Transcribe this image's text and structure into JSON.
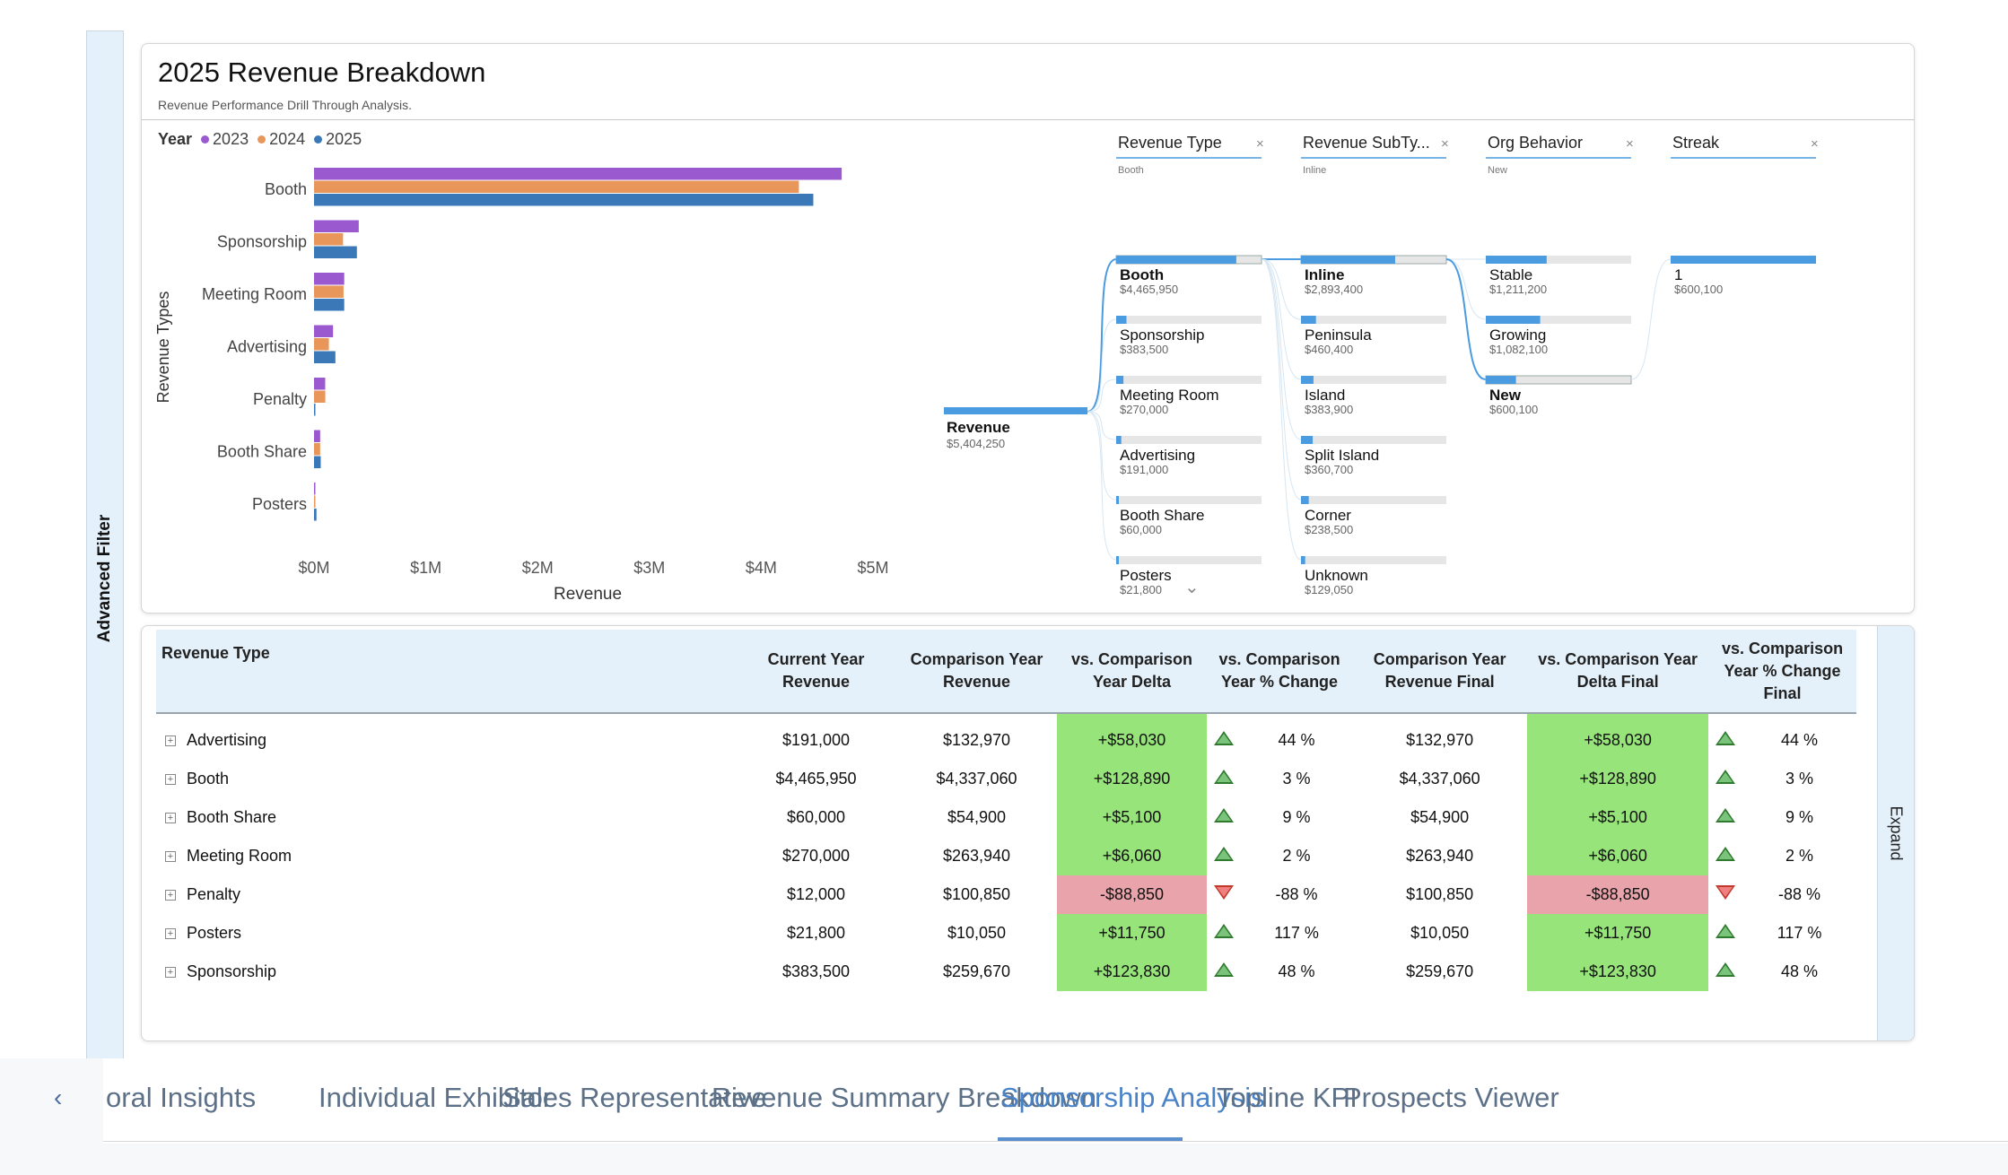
{
  "side_panel": {
    "advanced_filter_label": "Advanced Filter",
    "expand_label": "Expand"
  },
  "report": {
    "title": "2025 Revenue Breakdown",
    "subtitle": "Revenue Performance Drill Through Analysis."
  },
  "legend": {
    "title": "Year",
    "items": [
      {
        "label": "2023",
        "color": "#9b59d0"
      },
      {
        "label": "2024",
        "color": "#e8965a"
      },
      {
        "label": "2025",
        "color": "#3a78b8"
      }
    ]
  },
  "chart_data": {
    "type": "bar",
    "orientation": "horizontal",
    "title": "",
    "xlabel": "Revenue",
    "ylabel": "Revenue Types",
    "xlim": [
      0,
      5000000
    ],
    "xticks": [
      "$0M",
      "$1M",
      "$2M",
      "$3M",
      "$4M",
      "$5M"
    ],
    "xtick_values": [
      0,
      1000000,
      2000000,
      3000000,
      4000000,
      5000000
    ],
    "categories": [
      "Booth",
      "Sponsorship",
      "Meeting Room",
      "Advertising",
      "Penalty",
      "Booth Share",
      "Posters"
    ],
    "series": [
      {
        "name": "2023",
        "color": "#9b59d0",
        "values": [
          4720000,
          400000,
          270000,
          170000,
          100000,
          55000,
          10000
        ]
      },
      {
        "name": "2024",
        "color": "#e8965a",
        "values": [
          4337060,
          259670,
          263940,
          132970,
          100850,
          54900,
          10050
        ]
      },
      {
        "name": "2025",
        "color": "#3a78b8",
        "values": [
          4465950,
          383500,
          270000,
          191000,
          12000,
          60000,
          21800
        ]
      }
    ]
  },
  "decomp_tree": {
    "filters": [
      {
        "label": "Revenue Type",
        "value": "Booth"
      },
      {
        "label": "Revenue SubTy...",
        "value": "Inline"
      },
      {
        "label": "Org Behavior",
        "value": "New"
      },
      {
        "label": "Streak",
        "value": ""
      }
    ],
    "root": {
      "label": "Revenue",
      "value": "$5,404,250",
      "amount": 5404250
    },
    "levels": [
      [
        {
          "label": "Booth",
          "value": "$4,465,950",
          "amount": 4465950,
          "selected": true
        },
        {
          "label": "Sponsorship",
          "value": "$383,500",
          "amount": 383500
        },
        {
          "label": "Meeting Room",
          "value": "$270,000",
          "amount": 270000
        },
        {
          "label": "Advertising",
          "value": "$191,000",
          "amount": 191000
        },
        {
          "label": "Booth Share",
          "value": "$60,000",
          "amount": 60000
        },
        {
          "label": "Posters",
          "value": "$21,800",
          "amount": 21800
        }
      ],
      [
        {
          "label": "Inline",
          "value": "$2,893,400",
          "amount": 2893400,
          "selected": true
        },
        {
          "label": "Peninsula",
          "value": "$460,400",
          "amount": 460400
        },
        {
          "label": "Island",
          "value": "$383,900",
          "amount": 383900
        },
        {
          "label": "Split Island",
          "value": "$360,700",
          "amount": 360700
        },
        {
          "label": "Corner",
          "value": "$238,500",
          "amount": 238500
        },
        {
          "label": "Unknown",
          "value": "$129,050",
          "amount": 129050
        }
      ],
      [
        {
          "label": "Stable",
          "value": "$1,211,200",
          "amount": 1211200
        },
        {
          "label": "Growing",
          "value": "$1,082,100",
          "amount": 1082100
        },
        {
          "label": "New",
          "value": "$600,100",
          "amount": 600100,
          "selected": true
        }
      ],
      [
        {
          "label": "1",
          "value": "$600,100",
          "amount": 600100
        }
      ]
    ],
    "bar_color": "#4a9be0",
    "track_color": "#e6e6e6"
  },
  "table": {
    "headers": [
      "Revenue Type",
      "Current Year Revenue",
      "Comparison Year Revenue",
      "vs. Comparison Year Delta",
      "vs. Comparison Year % Change",
      "Comparison Year Revenue Final",
      "vs. Comparison Year Delta Final",
      "vs. Comparison Year % Change Final"
    ],
    "rows": [
      {
        "type": "Advertising",
        "current": "$191,000",
        "comparison": "$132,970",
        "delta": "+$58,030",
        "pct": "44 %",
        "comp_final": "$132,970",
        "delta_final": "+$58,030",
        "pct_final": "44 %",
        "trend": "up"
      },
      {
        "type": "Booth",
        "current": "$4,465,950",
        "comparison": "$4,337,060",
        "delta": "+$128,890",
        "pct": "3 %",
        "comp_final": "$4,337,060",
        "delta_final": "+$128,890",
        "pct_final": "3 %",
        "trend": "up"
      },
      {
        "type": "Booth Share",
        "current": "$60,000",
        "comparison": "$54,900",
        "delta": "+$5,100",
        "pct": "9 %",
        "comp_final": "$54,900",
        "delta_final": "+$5,100",
        "pct_final": "9 %",
        "trend": "up"
      },
      {
        "type": "Meeting Room",
        "current": "$270,000",
        "comparison": "$263,940",
        "delta": "+$6,060",
        "pct": "2 %",
        "comp_final": "$263,940",
        "delta_final": "+$6,060",
        "pct_final": "2 %",
        "trend": "up"
      },
      {
        "type": "Penalty",
        "current": "$12,000",
        "comparison": "$100,850",
        "delta": "-$88,850",
        "pct": "-88 %",
        "comp_final": "$100,850",
        "delta_final": "-$88,850",
        "pct_final": "-88 %",
        "trend": "down"
      },
      {
        "type": "Posters",
        "current": "$21,800",
        "comparison": "$10,050",
        "delta": "+$11,750",
        "pct": "117 %",
        "comp_final": "$10,050",
        "delta_final": "+$11,750",
        "pct_final": "117 %",
        "trend": "up"
      },
      {
        "type": "Sponsorship",
        "current": "$383,500",
        "comparison": "$259,670",
        "delta": "+$123,830",
        "pct": "48 %",
        "comp_final": "$259,670",
        "delta_final": "+$123,830",
        "pct_final": "48 %",
        "trend": "up"
      }
    ]
  },
  "tabs": {
    "prev_icon": "chevron-left-icon",
    "items": [
      {
        "label": "oral Insights",
        "active": false
      },
      {
        "label": "Individual Exhibitor",
        "active": false
      },
      {
        "label": "Sales Representative",
        "active": false
      },
      {
        "label": "Revenue Summary Breakdown",
        "active": false
      },
      {
        "label": "Sponsorship Analysis",
        "active": true
      },
      {
        "label": "Topline KPI",
        "active": false
      },
      {
        "label": "Prospects Viewer",
        "active": false
      }
    ]
  }
}
